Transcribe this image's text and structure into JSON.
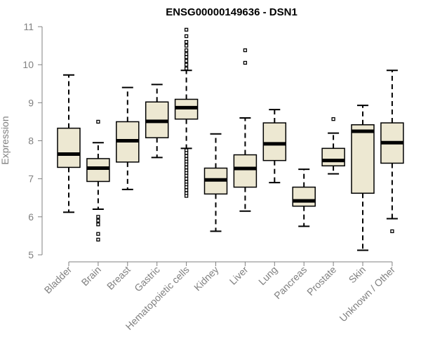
{
  "chart_data": {
    "type": "box",
    "title": "ENSG00000149636 - DSN1",
    "xlabel": "",
    "ylabel": "Expression",
    "ylim": [
      5,
      11
    ],
    "yticks": [
      "5",
      "6",
      "7",
      "8",
      "9",
      "10",
      "11"
    ],
    "grid": false,
    "categories": [
      "Bladder",
      "Brain",
      "Breast",
      "Gastric",
      "Hematopoietic cells",
      "Kidney",
      "Liver",
      "Lung",
      "Pancreas",
      "Prostate",
      "Skin",
      "Unknown / Other"
    ],
    "boxes": [
      {
        "category": "Bladder",
        "whisker_low": 6.12,
        "q1": 7.3,
        "median": 7.65,
        "q3": 8.33,
        "whisker_high": 9.73,
        "outliers": []
      },
      {
        "category": "Brain",
        "whisker_low": 6.2,
        "q1": 6.93,
        "median": 7.28,
        "q3": 7.53,
        "whisker_high": 7.95,
        "outliers": [
          8.5,
          6.0,
          5.9,
          5.8,
          5.55,
          5.4
        ]
      },
      {
        "category": "Breast",
        "whisker_low": 6.72,
        "q1": 7.44,
        "median": 8.0,
        "q3": 8.5,
        "whisker_high": 9.4,
        "outliers": []
      },
      {
        "category": "Gastric",
        "whisker_low": 7.56,
        "q1": 8.08,
        "median": 8.51,
        "q3": 9.02,
        "whisker_high": 9.48,
        "outliers": []
      },
      {
        "category": "Hematopoietic cells",
        "whisker_low": 7.8,
        "q1": 8.57,
        "median": 8.87,
        "q3": 9.09,
        "whisker_high": 9.85,
        "outliers": [
          10.92,
          10.75,
          10.6,
          10.5,
          10.38,
          10.28,
          10.2,
          10.1,
          10.0,
          9.9,
          7.75,
          7.68,
          7.6,
          7.52,
          7.45,
          7.38,
          7.3,
          7.22,
          7.15,
          7.08,
          7.0,
          6.92,
          6.85,
          6.78,
          6.7,
          6.62,
          6.55
        ]
      },
      {
        "category": "Kidney",
        "whisker_low": 5.62,
        "q1": 6.6,
        "median": 6.97,
        "q3": 7.28,
        "whisker_high": 8.18,
        "outliers": []
      },
      {
        "category": "Liver",
        "whisker_low": 6.15,
        "q1": 6.78,
        "median": 7.27,
        "q3": 7.63,
        "whisker_high": 8.6,
        "outliers": [
          10.38,
          10.05
        ]
      },
      {
        "category": "Lung",
        "whisker_low": 6.9,
        "q1": 7.48,
        "median": 7.92,
        "q3": 8.47,
        "whisker_high": 8.82,
        "outliers": []
      },
      {
        "category": "Pancreas",
        "whisker_low": 5.75,
        "q1": 6.28,
        "median": 6.42,
        "q3": 6.78,
        "whisker_high": 7.25,
        "outliers": []
      },
      {
        "category": "Prostate",
        "whisker_low": 7.13,
        "q1": 7.34,
        "median": 7.48,
        "q3": 7.8,
        "whisker_high": 8.2,
        "outliers": [
          8.57
        ]
      },
      {
        "category": "Skin",
        "whisker_low": 5.12,
        "q1": 6.62,
        "median": 8.25,
        "q3": 8.42,
        "whisker_high": 8.93,
        "outliers": []
      },
      {
        "category": "Unknown / Other",
        "whisker_low": 5.95,
        "q1": 7.41,
        "median": 7.95,
        "q3": 8.47,
        "whisker_high": 9.85,
        "outliers": [
          5.62
        ]
      }
    ],
    "colors": {
      "box_fill": "#ede8d2",
      "box_stroke": "#000000",
      "median": "#000000",
      "axis": "#808080",
      "tick_text": "#808080"
    }
  }
}
